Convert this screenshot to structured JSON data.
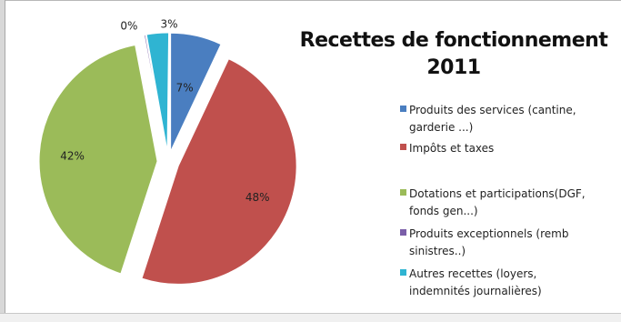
{
  "chart_data": {
    "type": "pie",
    "title_lines": [
      "Recettes de fonctionnement",
      "2011"
    ],
    "slices": [
      {
        "label": "Produits des services (cantine, garderie ...)",
        "value": 7,
        "data_label": "7%",
        "color": "#4a7ec0"
      },
      {
        "label": "Impôts et taxes",
        "value": 48,
        "data_label": "48%",
        "color": "#c0504d"
      },
      {
        "label": "Dotations et participations(DGF, fonds gen...)",
        "value": 42,
        "data_label": "42%",
        "color": "#9bbb59"
      },
      {
        "label": "Produits exceptionnels (remb sinistres..)",
        "value": 0,
        "data_label": "0%",
        "color": "#7a5ea8"
      },
      {
        "label": "Autres recettes (loyers, indemnités journalières)",
        "value": 3,
        "data_label": "3%",
        "color": "#2fb4d2"
      }
    ],
    "exploded": true,
    "legend_position": "right"
  },
  "legend": {
    "items": [
      {
        "line1": "Produits des services (cantine,",
        "line2": "garderie ...)"
      },
      {
        "line1": "Impôts et taxes",
        "line2": ""
      },
      {
        "line1": "Dotations et participations(DGF,",
        "line2": "fonds gen...)"
      },
      {
        "line1": "Produits exceptionnels (remb",
        "line2": "sinistres..)"
      },
      {
        "line1": "Autres recettes (loyers,",
        "line2": "indemnités journalières)"
      }
    ]
  }
}
